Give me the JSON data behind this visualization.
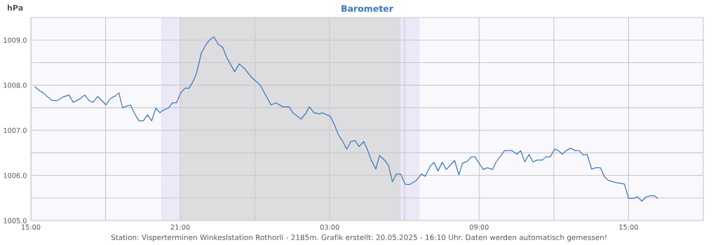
{
  "chart_data": {
    "type": "line",
    "title": "Barometer",
    "ylabel": "hPa",
    "annotations": [
      "Station: Visperterminen Winkeslstation Rothorli - 2185m. Grafik erstellt: 20.05.2025 - 16:10 Uhr. Daten werden automatisch gemessen!"
    ],
    "xlim": [
      "2025-05-19T15:00",
      "2025-05-20T18:00"
    ],
    "ylim": [
      1005,
      1009.5
    ],
    "xticks": [
      {
        "value": "2025-05-19T15:00",
        "label": "15:00"
      },
      {
        "value": "2025-05-19T18:00",
        "label": null
      },
      {
        "value": "2025-05-19T21:00",
        "label": "21:00"
      },
      {
        "value": "2025-05-20T00:00",
        "label": null
      },
      {
        "value": "2025-05-20T03:00",
        "label": "03:00"
      },
      {
        "value": "2025-05-20T06:00",
        "label": null
      },
      {
        "value": "2025-05-20T09:00",
        "label": "09:00"
      },
      {
        "value": "2025-05-20T12:00",
        "label": null
      },
      {
        "value": "2025-05-20T15:00",
        "label": "15:00"
      }
    ],
    "yticks": [
      {
        "value": 1005,
        "label": "1005.0"
      },
      {
        "value": 1005.5,
        "label": null
      },
      {
        "value": 1006,
        "label": "1006.0"
      },
      {
        "value": 1006.5,
        "label": null
      },
      {
        "value": 1007,
        "label": "1007.0"
      },
      {
        "value": 1007.5,
        "label": null
      },
      {
        "value": 1008,
        "label": "1008.0"
      },
      {
        "value": 1008.5,
        "label": null
      },
      {
        "value": 1009,
        "label": "1009.0"
      }
    ],
    "grid": true,
    "legend": false,
    "marker": "none",
    "line_style": "solid",
    "bands": [
      {
        "axis": "x",
        "from": "2025-05-19T20:14",
        "to": "2025-05-19T21:00",
        "label": null,
        "color": "#ece8f7"
      },
      {
        "axis": "x",
        "from": "2025-05-19T21:00",
        "to": "2025-05-20T05:48",
        "label": null,
        "color": "#dddde0"
      },
      {
        "axis": "x",
        "from": "2025-05-20T05:48",
        "to": "2025-05-20T06:36",
        "label": null,
        "color": "#ece8f7"
      }
    ],
    "ref_lines": [
      {
        "axis": "x",
        "value": "2025-05-20T05:49",
        "label": null,
        "color": "#d8cce6",
        "line_style": "solid"
      }
    ],
    "series": [
      {
        "color": "#3a7ab8",
        "x": [
          "2025-05-19T15:10",
          "2025-05-19T15:22",
          "2025-05-19T15:30",
          "2025-05-19T15:38",
          "2025-05-19T15:51",
          "2025-05-19T16:04",
          "2025-05-19T16:18",
          "2025-05-19T16:32",
          "2025-05-19T16:42",
          "2025-05-19T16:57",
          "2025-05-19T17:10",
          "2025-05-19T17:21",
          "2025-05-19T17:30",
          "2025-05-19T17:41",
          "2025-05-19T17:52",
          "2025-05-19T18:01",
          "2025-05-19T18:11",
          "2025-05-19T18:23",
          "2025-05-19T18:32",
          "2025-05-19T18:41",
          "2025-05-19T18:50",
          "2025-05-19T19:00",
          "2025-05-19T19:11",
          "2025-05-19T19:21",
          "2025-05-19T19:31",
          "2025-05-19T19:41",
          "2025-05-19T19:51",
          "2025-05-19T20:01",
          "2025-05-19T20:11",
          "2025-05-19T20:20",
          "2025-05-19T20:31",
          "2025-05-19T20:41",
          "2025-05-19T20:51",
          "2025-05-19T21:01",
          "2025-05-19T21:11",
          "2025-05-19T21:21",
          "2025-05-19T21:29",
          "2025-05-19T21:39",
          "2025-05-19T21:51",
          "2025-05-19T22:04",
          "2025-05-19T22:13",
          "2025-05-19T22:21",
          "2025-05-19T22:31",
          "2025-05-19T22:42",
          "2025-05-19T22:52",
          "2025-05-19T23:11",
          "2025-05-19T23:22",
          "2025-05-19T23:34",
          "2025-05-19T23:51",
          "2025-05-20T00:13",
          "2025-05-20T00:22",
          "2025-05-20T00:39",
          "2025-05-20T00:50",
          "2025-05-20T01:07",
          "2025-05-20T01:22",
          "2025-05-20T01:32",
          "2025-05-20T01:51",
          "2025-05-20T02:02",
          "2025-05-20T02:11",
          "2025-05-20T02:22",
          "2025-05-20T02:36",
          "2025-05-20T02:41",
          "2025-05-20T03:01",
          "2025-05-20T03:11",
          "2025-05-20T03:21",
          "2025-05-20T03:31",
          "2025-05-20T03:41",
          "2025-05-20T03:51",
          "2025-05-20T04:01",
          "2025-05-20T04:11",
          "2025-05-20T04:22",
          "2025-05-20T04:30",
          "2025-05-20T04:40",
          "2025-05-20T04:51",
          "2025-05-20T05:00",
          "2025-05-20T05:14",
          "2025-05-20T05:22",
          "2025-05-20T05:31",
          "2025-05-20T05:41",
          "2025-05-20T05:51",
          "2025-05-20T06:02",
          "2025-05-20T06:13",
          "2025-05-20T06:28",
          "2025-05-20T06:41",
          "2025-05-20T06:50",
          "2025-05-20T07:02",
          "2025-05-20T07:11",
          "2025-05-20T07:21",
          "2025-05-20T07:31",
          "2025-05-20T07:41",
          "2025-05-20T08:01",
          "2025-05-20T08:11",
          "2025-05-20T08:20",
          "2025-05-20T08:31",
          "2025-05-20T08:41",
          "2025-05-20T08:50",
          "2025-05-20T08:55",
          "2025-05-20T09:10",
          "2025-05-20T09:20",
          "2025-05-20T09:32",
          "2025-05-20T09:40",
          "2025-05-20T10:01",
          "2025-05-20T10:19",
          "2025-05-20T10:31",
          "2025-05-20T10:40",
          "2025-05-20T10:50",
          "2025-05-20T11:00",
          "2025-05-20T11:10",
          "2025-05-20T11:20",
          "2025-05-20T11:32",
          "2025-05-20T11:41",
          "2025-05-20T11:51",
          "2025-05-20T12:02",
          "2025-05-20T12:11",
          "2025-05-20T12:20",
          "2025-05-20T12:30",
          "2025-05-20T12:40",
          "2025-05-20T12:52",
          "2025-05-20T13:01",
          "2025-05-20T13:11",
          "2025-05-20T13:20",
          "2025-05-20T13:31",
          "2025-05-20T13:41",
          "2025-05-20T13:52",
          "2025-05-20T14:02",
          "2025-05-20T14:11",
          "2025-05-20T14:30",
          "2025-05-20T14:50",
          "2025-05-20T15:00",
          "2025-05-20T15:13",
          "2025-05-20T15:21",
          "2025-05-20T15:32",
          "2025-05-20T15:42",
          "2025-05-20T15:52",
          "2025-05-20T16:02",
          "2025-05-20T16:10"
        ],
        "values": [
          1007.96,
          1007.87,
          1007.83,
          1007.76,
          1007.66,
          1007.66,
          1007.74,
          1007.78,
          1007.62,
          1007.69,
          1007.78,
          1007.65,
          1007.62,
          1007.75,
          1007.65,
          1007.56,
          1007.7,
          1007.76,
          1007.83,
          1007.5,
          1007.53,
          1007.56,
          1007.35,
          1007.21,
          1007.21,
          1007.34,
          1007.21,
          1007.49,
          1007.39,
          1007.45,
          1007.49,
          1007.61,
          1007.61,
          1007.83,
          1007.93,
          1007.93,
          1008.05,
          1008.26,
          1008.72,
          1008.93,
          1009.02,
          1009.07,
          1008.91,
          1008.84,
          1008.61,
          1008.3,
          1008.47,
          1008.38,
          1008.18,
          1008.0,
          1007.84,
          1007.56,
          1007.61,
          1007.52,
          1007.52,
          1007.38,
          1007.25,
          1007.37,
          1007.52,
          1007.39,
          1007.36,
          1007.39,
          1007.31,
          1007.13,
          1006.9,
          1006.76,
          1006.58,
          1006.75,
          1006.77,
          1006.64,
          1006.75,
          1006.59,
          1006.34,
          1006.14,
          1006.44,
          1006.32,
          1006.21,
          1005.86,
          1006.03,
          1006.03,
          1005.8,
          1005.8,
          1005.88,
          1006.03,
          1005.98,
          1006.2,
          1006.29,
          1006.1,
          1006.29,
          1006.13,
          1006.33,
          1006.01,
          1006.27,
          1006.31,
          1006.41,
          1006.41,
          1006.34,
          1006.13,
          1006.17,
          1006.13,
          1006.28,
          1006.55,
          1006.55,
          1006.47,
          1006.55,
          1006.3,
          1006.46,
          1006.3,
          1006.34,
          1006.34,
          1006.41,
          1006.41,
          1006.58,
          1006.55,
          1006.47,
          1006.55,
          1006.6,
          1006.55,
          1006.55,
          1006.45,
          1006.47,
          1006.14,
          1006.17,
          1006.17,
          1005.97,
          1005.89,
          1005.84,
          1005.81,
          1005.49,
          1005.49,
          1005.53,
          1005.43,
          1005.52,
          1005.55,
          1005.55,
          1005.49
        ]
      }
    ]
  }
}
